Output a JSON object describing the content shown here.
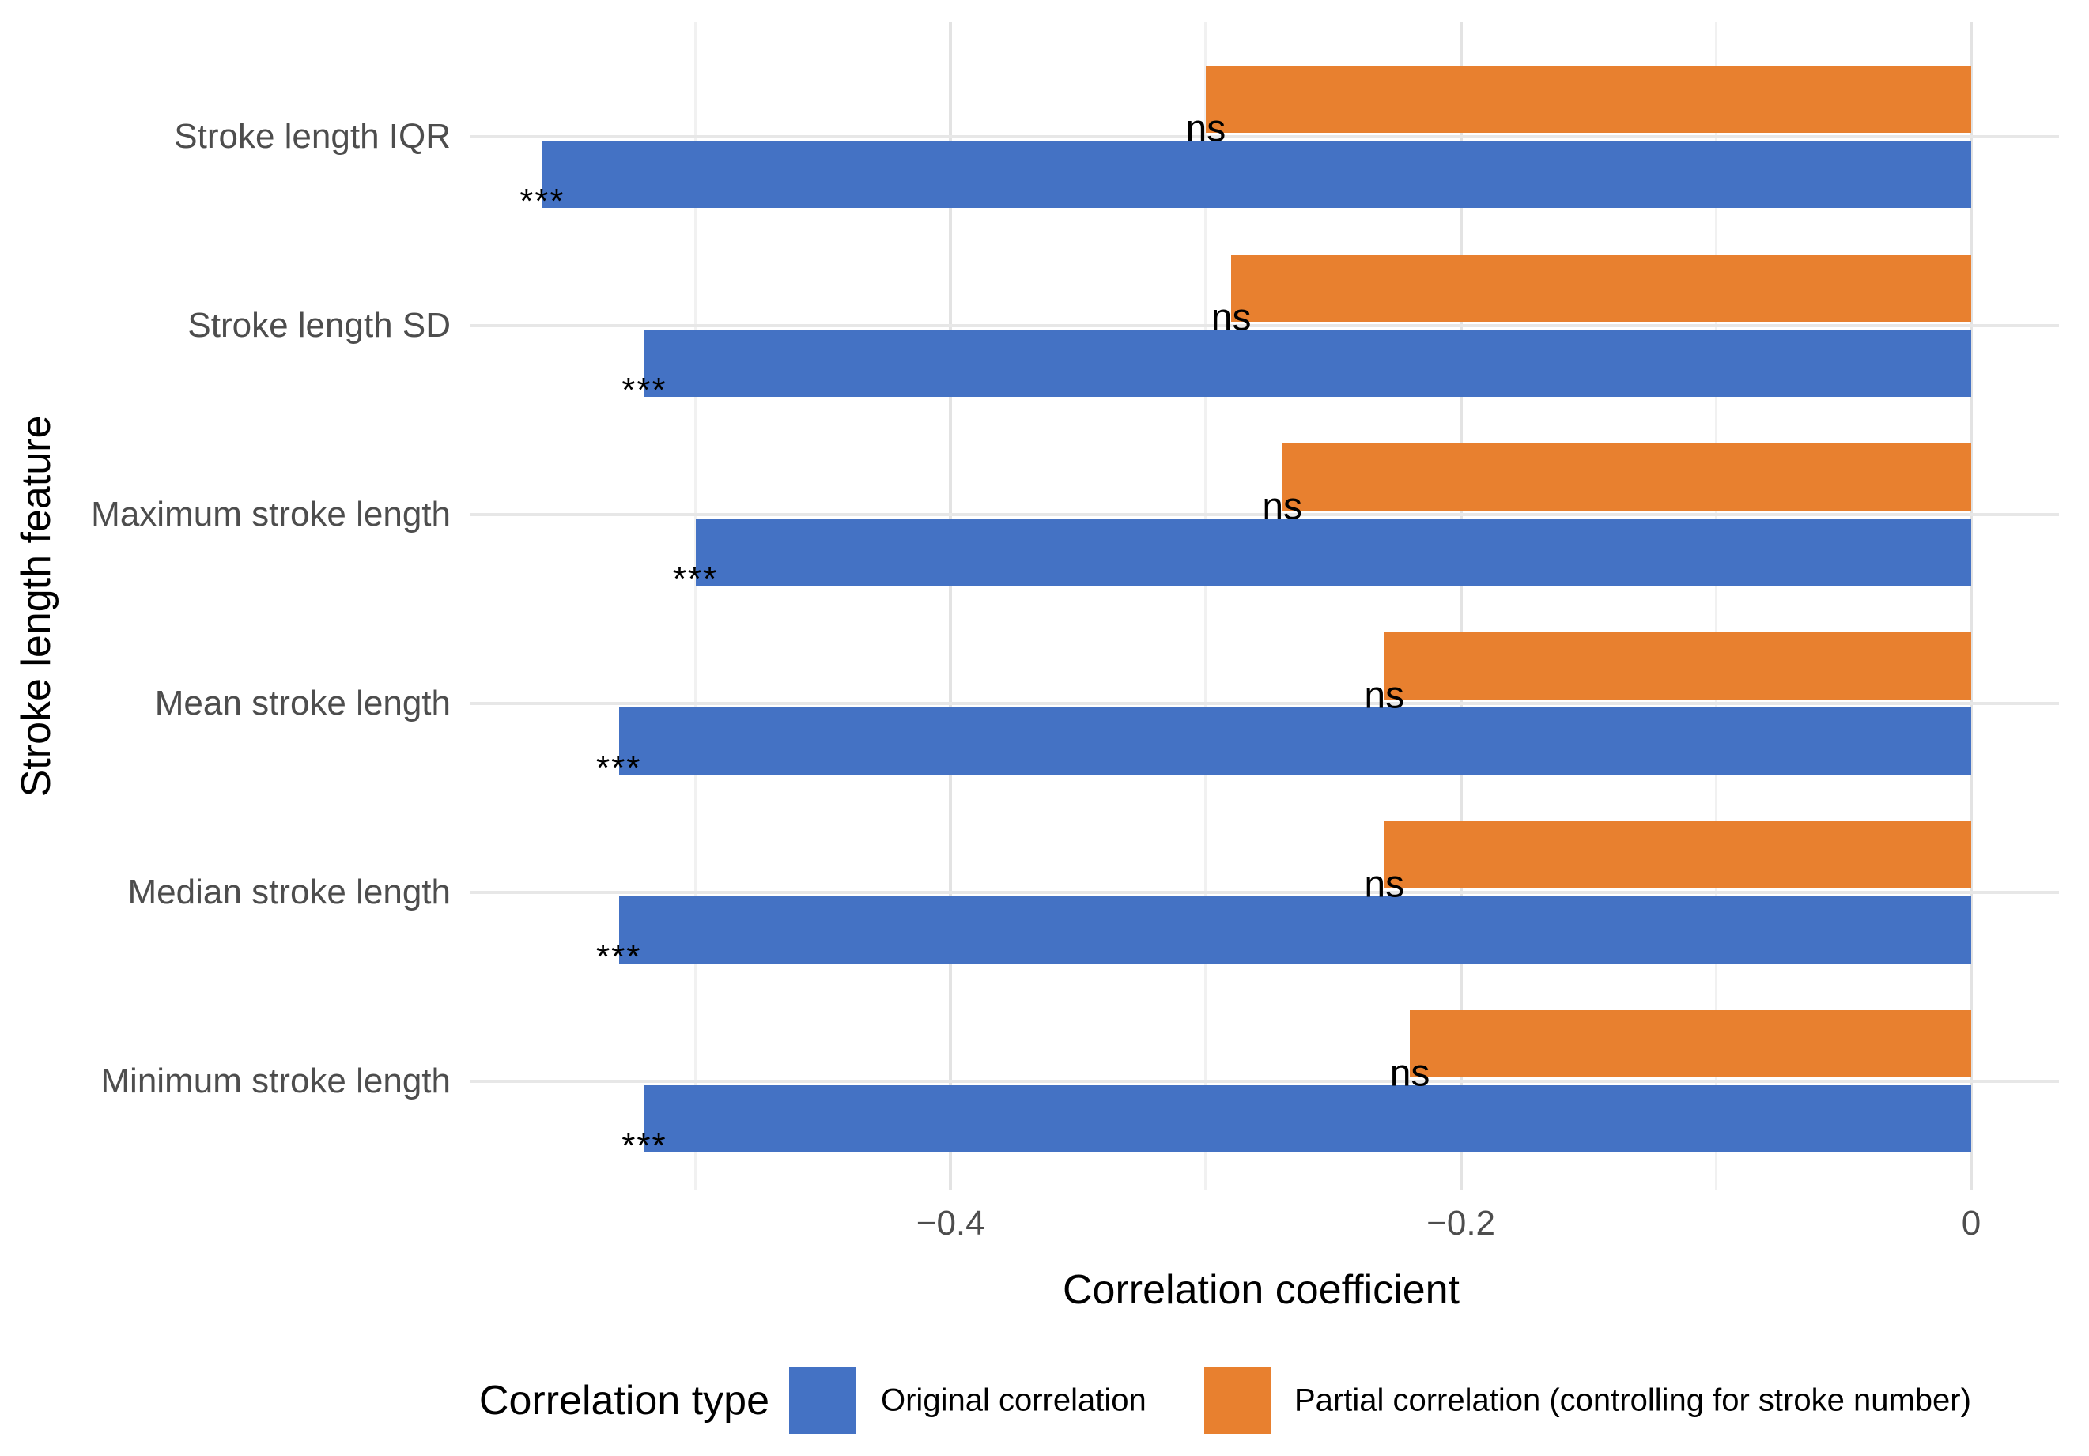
{
  "chart_data": {
    "type": "bar",
    "orientation": "horizontal",
    "xlabel": "Correlation coefficient",
    "ylabel": "Stroke length feature",
    "categories": [
      "Stroke length IQR",
      "Stroke length SD",
      "Maximum stroke length",
      "Mean stroke length",
      "Median stroke length",
      "Minimum stroke length"
    ],
    "series": [
      {
        "name": "Original correlation",
        "color": "#4472c4",
        "values": [
          -0.56,
          -0.52,
          -0.5,
          -0.53,
          -0.53,
          -0.52
        ],
        "significance": [
          "***",
          "***",
          "***",
          "***",
          "***",
          "***"
        ]
      },
      {
        "name": "Partial correlation (controlling for stroke number)",
        "color": "#e8802f",
        "values": [
          -0.3,
          -0.29,
          -0.27,
          -0.23,
          -0.23,
          -0.22
        ],
        "significance": [
          "ns",
          "ns",
          "ns",
          "ns",
          "ns",
          "ns"
        ]
      }
    ],
    "xlim": [
      -0.588,
      0.034
    ],
    "xticks": [
      {
        "value": -0.4,
        "label": "−0.4"
      },
      {
        "value": -0.2,
        "label": "−0.2"
      },
      {
        "value": 0,
        "label": "0"
      }
    ],
    "minor_gridlines": [
      -0.5,
      -0.3,
      -0.1
    ],
    "grid": true,
    "legend": {
      "title": "Correlation type",
      "position": "bottom"
    },
    "colors": {
      "axis_text": "#4d4d4d",
      "titles": "#000000",
      "major_grid": "#e3e3e3",
      "minor_grid": "#f1f1f1",
      "background": "#ffffff"
    }
  }
}
